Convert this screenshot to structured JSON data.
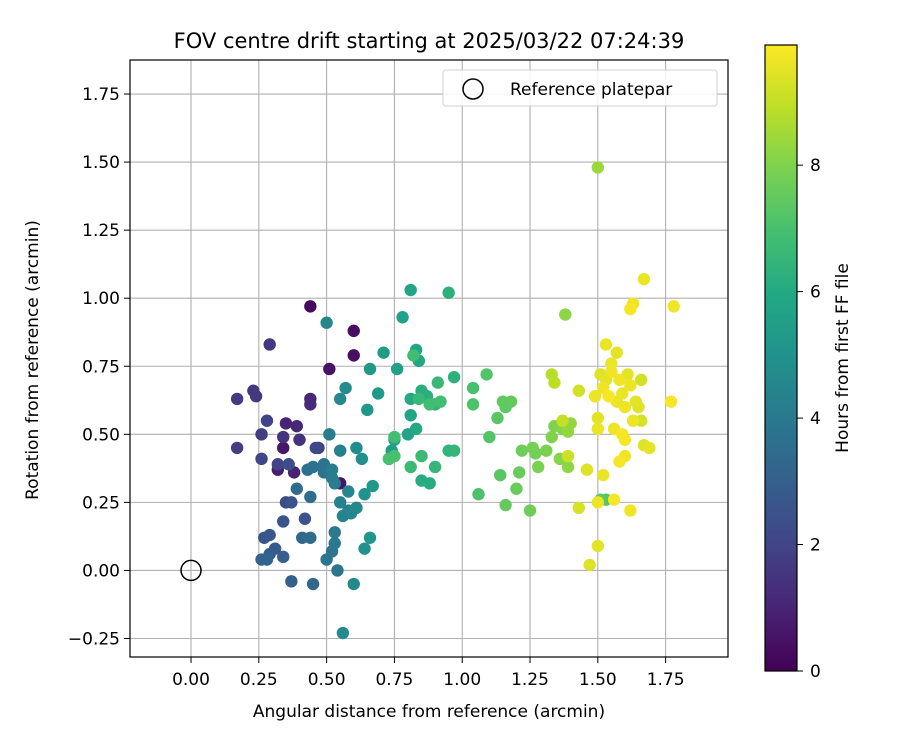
{
  "chart_data": {
    "type": "scatter",
    "title": "FOV centre drift starting at 2025/03/22 07:24:39",
    "xlabel": "Angular distance from reference (arcmin)",
    "ylabel": "Rotation from reference (arcmin)",
    "xlim": [
      -0.225,
      1.98
    ],
    "ylim": [
      -0.318,
      1.875
    ],
    "xticks": [
      0.0,
      0.25,
      0.5,
      0.75,
      1.0,
      1.25,
      1.5,
      1.75
    ],
    "xtick_labels": [
      "0.00",
      "0.25",
      "0.50",
      "0.75",
      "1.00",
      "1.25",
      "1.50",
      "1.75"
    ],
    "yticks": [
      -0.25,
      0.0,
      0.25,
      0.5,
      0.75,
      1.0,
      1.25,
      1.5,
      1.75
    ],
    "ytick_labels": [
      "−0.25",
      "0.00",
      "0.25",
      "0.50",
      "0.75",
      "1.00",
      "1.25",
      "1.50",
      "1.75"
    ],
    "grid": true,
    "legend": {
      "placement": "top-right",
      "entries": [
        "Reference platepar"
      ]
    },
    "reference_point": {
      "x": 0.0,
      "y": 0.0,
      "label": "Reference platepar"
    },
    "colorbar": {
      "label": "Hours from first FF file",
      "colormap": "viridis",
      "range": [
        0,
        9.9
      ],
      "ticks": [
        0,
        2,
        4,
        6,
        8
      ],
      "tick_labels": [
        "0",
        "2",
        "4",
        "6",
        "8"
      ]
    },
    "points": [
      {
        "x": 0.44,
        "y": 0.97,
        "c": 0.3
      },
      {
        "x": 0.6,
        "y": 0.88,
        "c": 0.4
      },
      {
        "x": 0.6,
        "y": 0.79,
        "c": 0.4
      },
      {
        "x": 0.51,
        "y": 0.74,
        "c": 0.5
      },
      {
        "x": 0.34,
        "y": 0.45,
        "c": 0.6
      },
      {
        "x": 0.55,
        "y": 0.32,
        "c": 0.6
      },
      {
        "x": 0.32,
        "y": 0.37,
        "c": 0.8
      },
      {
        "x": 0.38,
        "y": 0.36,
        "c": 0.9
      },
      {
        "x": 0.35,
        "y": 0.54,
        "c": 1.0
      },
      {
        "x": 0.39,
        "y": 0.53,
        "c": 1.1
      },
      {
        "x": 0.44,
        "y": 0.63,
        "c": 1.1
      },
      {
        "x": 0.29,
        "y": 0.83,
        "c": 1.6
      },
      {
        "x": 0.44,
        "y": 0.61,
        "c": 1.2
      },
      {
        "x": 0.23,
        "y": 0.66,
        "c": 1.6
      },
      {
        "x": 0.24,
        "y": 0.64,
        "c": 1.6
      },
      {
        "x": 0.17,
        "y": 0.63,
        "c": 1.7
      },
      {
        "x": 0.17,
        "y": 0.45,
        "c": 1.8
      },
      {
        "x": 0.26,
        "y": 0.5,
        "c": 1.8
      },
      {
        "x": 0.26,
        "y": 0.41,
        "c": 2.1
      },
      {
        "x": 0.28,
        "y": 0.55,
        "c": 2.0
      },
      {
        "x": 0.34,
        "y": 0.49,
        "c": 1.5
      },
      {
        "x": 0.4,
        "y": 0.48,
        "c": 1.4
      },
      {
        "x": 0.47,
        "y": 0.45,
        "c": 1.9
      },
      {
        "x": 0.46,
        "y": 0.45,
        "c": 2.2
      },
      {
        "x": 0.32,
        "y": 0.39,
        "c": 2.0
      },
      {
        "x": 0.36,
        "y": 0.39,
        "c": 2.3
      },
      {
        "x": 0.35,
        "y": 0.25,
        "c": 2.3
      },
      {
        "x": 0.37,
        "y": 0.25,
        "c": 2.5
      },
      {
        "x": 0.42,
        "y": 0.19,
        "c": 2.5
      },
      {
        "x": 0.34,
        "y": 0.18,
        "c": 2.6
      },
      {
        "x": 0.27,
        "y": 0.12,
        "c": 2.6
      },
      {
        "x": 0.29,
        "y": 0.13,
        "c": 2.7
      },
      {
        "x": 0.31,
        "y": 0.08,
        "c": 2.8
      },
      {
        "x": 0.29,
        "y": 0.06,
        "c": 2.9
      },
      {
        "x": 0.34,
        "y": 0.05,
        "c": 3.0
      },
      {
        "x": 0.26,
        "y": 0.04,
        "c": 3.1
      },
      {
        "x": 0.28,
        "y": 0.04,
        "c": 3.2
      },
      {
        "x": 0.37,
        "y": -0.04,
        "c": 3.0
      },
      {
        "x": 0.45,
        "y": -0.05,
        "c": 3.3
      },
      {
        "x": 0.41,
        "y": 0.12,
        "c": 3.3
      },
      {
        "x": 0.44,
        "y": 0.12,
        "c": 3.4
      },
      {
        "x": 0.44,
        "y": 0.27,
        "c": 3.5
      },
      {
        "x": 0.39,
        "y": 0.3,
        "c": 3.5
      },
      {
        "x": 0.43,
        "y": 0.37,
        "c": 3.6
      },
      {
        "x": 0.45,
        "y": 0.38,
        "c": 3.7
      },
      {
        "x": 0.49,
        "y": 0.36,
        "c": 3.8
      },
      {
        "x": 0.49,
        "y": 0.39,
        "c": 3.8
      },
      {
        "x": 0.5,
        "y": 0.04,
        "c": 3.9
      },
      {
        "x": 0.52,
        "y": 0.07,
        "c": 3.9
      },
      {
        "x": 0.53,
        "y": 0.1,
        "c": 4.0
      },
      {
        "x": 0.54,
        "y": 0.0,
        "c": 3.9
      },
      {
        "x": 0.53,
        "y": 0.14,
        "c": 4.0
      },
      {
        "x": 0.51,
        "y": 0.5,
        "c": 4.1
      },
      {
        "x": 0.52,
        "y": 0.37,
        "c": 4.1
      },
      {
        "x": 0.52,
        "y": 0.34,
        "c": 4.2
      },
      {
        "x": 0.53,
        "y": 0.32,
        "c": 4.2
      },
      {
        "x": 0.55,
        "y": 0.25,
        "c": 4.3
      },
      {
        "x": 0.56,
        "y": 0.2,
        "c": 4.4
      },
      {
        "x": 0.58,
        "y": 0.22,
        "c": 4.4
      },
      {
        "x": 0.58,
        "y": 0.29,
        "c": 4.5
      },
      {
        "x": 0.59,
        "y": 0.21,
        "c": 4.5
      },
      {
        "x": 0.61,
        "y": 0.23,
        "c": 4.6
      },
      {
        "x": 0.6,
        "y": -0.05,
        "c": 4.6
      },
      {
        "x": 0.56,
        "y": -0.23,
        "c": 4.7
      },
      {
        "x": 0.55,
        "y": 0.44,
        "c": 4.3
      },
      {
        "x": 0.5,
        "y": 0.91,
        "c": 4.5
      },
      {
        "x": 0.55,
        "y": 0.63,
        "c": 4.6
      },
      {
        "x": 0.57,
        "y": 0.67,
        "c": 4.7
      },
      {
        "x": 0.61,
        "y": 0.45,
        "c": 4.8
      },
      {
        "x": 0.63,
        "y": 0.41,
        "c": 4.9
      },
      {
        "x": 0.64,
        "y": 0.28,
        "c": 5.0
      },
      {
        "x": 0.64,
        "y": 0.08,
        "c": 5.0
      },
      {
        "x": 0.66,
        "y": 0.12,
        "c": 5.1
      },
      {
        "x": 0.67,
        "y": 0.31,
        "c": 5.2
      },
      {
        "x": 0.65,
        "y": 0.59,
        "c": 5.2
      },
      {
        "x": 0.66,
        "y": 0.74,
        "c": 5.3
      },
      {
        "x": 0.69,
        "y": 0.65,
        "c": 5.3
      },
      {
        "x": 0.71,
        "y": 0.8,
        "c": 5.4
      },
      {
        "x": 0.73,
        "y": 0.41,
        "c": 5.4
      },
      {
        "x": 0.74,
        "y": 0.44,
        "c": 5.5
      },
      {
        "x": 0.75,
        "y": 0.48,
        "c": 5.6
      },
      {
        "x": 0.76,
        "y": 0.74,
        "c": 5.6
      },
      {
        "x": 0.78,
        "y": 0.93,
        "c": 5.7
      },
      {
        "x": 0.8,
        "y": 0.5,
        "c": 5.7
      },
      {
        "x": 0.81,
        "y": 0.57,
        "c": 5.8
      },
      {
        "x": 0.81,
        "y": 1.03,
        "c": 5.8
      },
      {
        "x": 0.83,
        "y": 0.81,
        "c": 5.9
      },
      {
        "x": 0.84,
        "y": 0.77,
        "c": 5.9
      },
      {
        "x": 0.81,
        "y": 0.63,
        "c": 6.0
      },
      {
        "x": 0.83,
        "y": 0.52,
        "c": 6.0
      },
      {
        "x": 0.85,
        "y": 0.33,
        "c": 6.1
      },
      {
        "x": 0.88,
        "y": 0.32,
        "c": 6.1
      },
      {
        "x": 0.85,
        "y": 0.66,
        "c": 6.2
      },
      {
        "x": 0.87,
        "y": 0.64,
        "c": 6.2
      },
      {
        "x": 0.95,
        "y": 1.02,
        "c": 6.3
      },
      {
        "x": 0.97,
        "y": 0.71,
        "c": 6.3
      },
      {
        "x": 0.9,
        "y": 0.61,
        "c": 6.4
      },
      {
        "x": 0.95,
        "y": 0.44,
        "c": 6.4
      },
      {
        "x": 0.97,
        "y": 0.44,
        "c": 6.5
      },
      {
        "x": 0.9,
        "y": 0.38,
        "c": 6.5
      },
      {
        "x": 0.91,
        "y": 0.69,
        "c": 6.6
      },
      {
        "x": 0.84,
        "y": 0.63,
        "c": 6.6
      },
      {
        "x": 0.81,
        "y": 0.38,
        "c": 6.7
      },
      {
        "x": 0.85,
        "y": 0.42,
        "c": 6.7
      },
      {
        "x": 0.82,
        "y": 0.79,
        "c": 6.8
      },
      {
        "x": 0.88,
        "y": 0.61,
        "c": 6.8
      },
      {
        "x": 0.92,
        "y": 0.62,
        "c": 6.9
      },
      {
        "x": 0.75,
        "y": 0.49,
        "c": 6.9
      },
      {
        "x": 0.73,
        "y": 0.41,
        "c": 7.0
      },
      {
        "x": 0.75,
        "y": 0.42,
        "c": 7.0
      },
      {
        "x": 1.04,
        "y": 0.67,
        "c": 7.0
      },
      {
        "x": 1.04,
        "y": 0.61,
        "c": 7.1
      },
      {
        "x": 1.06,
        "y": 0.28,
        "c": 7.1
      },
      {
        "x": 1.09,
        "y": 0.72,
        "c": 7.2
      },
      {
        "x": 1.1,
        "y": 0.49,
        "c": 7.2
      },
      {
        "x": 1.13,
        "y": 0.56,
        "c": 7.3
      },
      {
        "x": 1.14,
        "y": 0.35,
        "c": 7.3
      },
      {
        "x": 1.15,
        "y": 0.62,
        "c": 7.4
      },
      {
        "x": 1.16,
        "y": 0.6,
        "c": 7.4
      },
      {
        "x": 1.16,
        "y": 0.24,
        "c": 7.5
      },
      {
        "x": 1.18,
        "y": 0.62,
        "c": 7.5
      },
      {
        "x": 1.2,
        "y": 0.3,
        "c": 7.6
      },
      {
        "x": 1.21,
        "y": 0.36,
        "c": 7.6
      },
      {
        "x": 1.22,
        "y": 0.44,
        "c": 7.7
      },
      {
        "x": 1.25,
        "y": 0.22,
        "c": 7.7
      },
      {
        "x": 1.26,
        "y": 0.45,
        "c": 7.8
      },
      {
        "x": 1.27,
        "y": 0.43,
        "c": 7.8
      },
      {
        "x": 1.28,
        "y": 0.38,
        "c": 7.9
      },
      {
        "x": 1.31,
        "y": 0.44,
        "c": 7.9
      },
      {
        "x": 1.33,
        "y": 0.49,
        "c": 8.0
      },
      {
        "x": 1.34,
        "y": 0.53,
        "c": 8.0
      },
      {
        "x": 1.36,
        "y": 0.41,
        "c": 8.1
      },
      {
        "x": 1.37,
        "y": 0.52,
        "c": 8.1
      },
      {
        "x": 1.38,
        "y": 0.94,
        "c": 8.2
      },
      {
        "x": 1.39,
        "y": 0.38,
        "c": 8.2
      },
      {
        "x": 1.39,
        "y": 0.51,
        "c": 8.3
      },
      {
        "x": 1.4,
        "y": 0.54,
        "c": 8.3
      },
      {
        "x": 1.5,
        "y": 1.48,
        "c": 8.4
      },
      {
        "x": 1.51,
        "y": 0.26,
        "c": 7.4
      },
      {
        "x": 1.53,
        "y": 0.26,
        "c": 7.2
      },
      {
        "x": 1.33,
        "y": 0.72,
        "c": 8.8
      },
      {
        "x": 1.34,
        "y": 0.69,
        "c": 8.9
      },
      {
        "x": 1.37,
        "y": 0.55,
        "c": 9.0
      },
      {
        "x": 1.39,
        "y": 0.42,
        "c": 9.1
      },
      {
        "x": 1.43,
        "y": 0.23,
        "c": 9.3
      },
      {
        "x": 1.43,
        "y": 0.66,
        "c": 9.2
      },
      {
        "x": 1.46,
        "y": 0.37,
        "c": 9.4
      },
      {
        "x": 1.47,
        "y": 0.02,
        "c": 9.4
      },
      {
        "x": 1.49,
        "y": 0.64,
        "c": 9.5
      },
      {
        "x": 1.5,
        "y": 0.09,
        "c": 9.5
      },
      {
        "x": 1.5,
        "y": 0.25,
        "c": 9.6
      },
      {
        "x": 1.5,
        "y": 0.52,
        "c": 9.6
      },
      {
        "x": 1.5,
        "y": 0.56,
        "c": 9.5
      },
      {
        "x": 1.51,
        "y": 0.72,
        "c": 9.4
      },
      {
        "x": 1.52,
        "y": 0.35,
        "c": 9.6
      },
      {
        "x": 1.52,
        "y": 0.67,
        "c": 9.7
      },
      {
        "x": 1.53,
        "y": 0.7,
        "c": 9.5
      },
      {
        "x": 1.53,
        "y": 0.83,
        "c": 9.6
      },
      {
        "x": 1.54,
        "y": 0.64,
        "c": 9.8
      },
      {
        "x": 1.55,
        "y": 0.73,
        "c": 9.7
      },
      {
        "x": 1.55,
        "y": 0.76,
        "c": 9.6
      },
      {
        "x": 1.56,
        "y": 0.26,
        "c": 9.8
      },
      {
        "x": 1.56,
        "y": 0.52,
        "c": 9.7
      },
      {
        "x": 1.57,
        "y": 0.62,
        "c": 9.6
      },
      {
        "x": 1.57,
        "y": 0.8,
        "c": 9.5
      },
      {
        "x": 1.58,
        "y": 0.4,
        "c": 9.8
      },
      {
        "x": 1.58,
        "y": 0.7,
        "c": 9.7
      },
      {
        "x": 1.59,
        "y": 0.5,
        "c": 9.8
      },
      {
        "x": 1.59,
        "y": 0.65,
        "c": 9.6
      },
      {
        "x": 1.6,
        "y": 0.42,
        "c": 9.7
      },
      {
        "x": 1.6,
        "y": 0.48,
        "c": 9.8
      },
      {
        "x": 1.6,
        "y": 0.6,
        "c": 9.7
      },
      {
        "x": 1.61,
        "y": 0.72,
        "c": 9.5
      },
      {
        "x": 1.62,
        "y": 0.22,
        "c": 9.7
      },
      {
        "x": 1.62,
        "y": 0.68,
        "c": 9.6
      },
      {
        "x": 1.62,
        "y": 0.96,
        "c": 9.8
      },
      {
        "x": 1.63,
        "y": 0.55,
        "c": 9.6
      },
      {
        "x": 1.63,
        "y": 0.98,
        "c": 9.7
      },
      {
        "x": 1.64,
        "y": 0.62,
        "c": 9.5
      },
      {
        "x": 1.65,
        "y": 0.6,
        "c": 9.4
      },
      {
        "x": 1.66,
        "y": 0.55,
        "c": 9.3
      },
      {
        "x": 1.66,
        "y": 0.7,
        "c": 9.2
      },
      {
        "x": 1.67,
        "y": 1.07,
        "c": 9.6
      },
      {
        "x": 1.67,
        "y": 0.46,
        "c": 9.4
      },
      {
        "x": 1.69,
        "y": 0.45,
        "c": 9.5
      },
      {
        "x": 1.77,
        "y": 0.62,
        "c": 9.8
      },
      {
        "x": 1.78,
        "y": 0.97,
        "c": 9.7
      },
      {
        "x": 1.49,
        "y": 0.64,
        "c": 9.6
      }
    ]
  }
}
